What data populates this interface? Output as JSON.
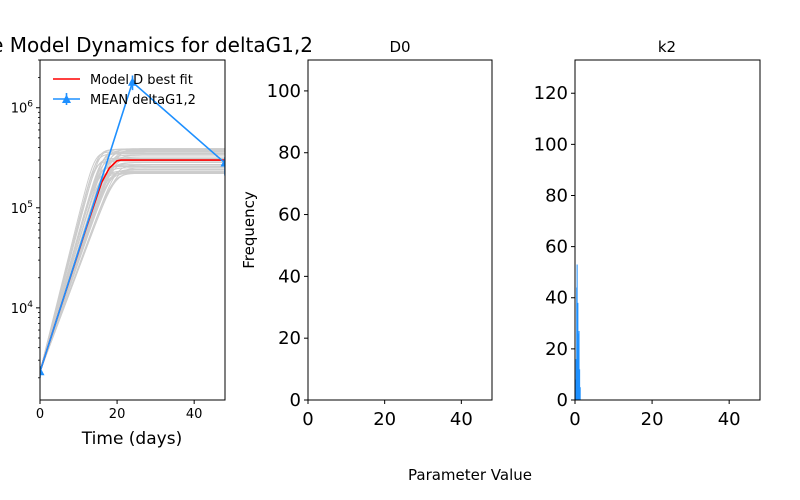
{
  "figure": {
    "xlabel_shared": "Parameter Value"
  },
  "chart_data": [
    {
      "type": "line",
      "title": "e Model Dynamics for deltaG1,2",
      "xlabel": "Time (days)",
      "ylabel": "",
      "xlim": [
        0,
        48
      ],
      "ylim": [
        1200,
        3000000
      ],
      "yscale": "log",
      "xticks": [
        0,
        20,
        40
      ],
      "yticks": [
        {
          "value": 10000,
          "base": "10",
          "exp": "4"
        },
        {
          "value": 100000,
          "base": "10",
          "exp": "5"
        },
        {
          "value": 1000000,
          "base": "10",
          "exp": "6"
        }
      ],
      "legend": {
        "placement": "top-left",
        "frame": false
      },
      "ensemble": {
        "color": "#cccccc",
        "count": 40,
        "y0": 2300,
        "plateau_min": 220000,
        "plateau_max": 390000,
        "saturation_day_min": 14,
        "saturation_day_max": 20
      },
      "series": [
        {
          "name": " Model D best fit",
          "color": "#ff0000",
          "style": "line",
          "x": [
            0,
            4,
            8,
            12,
            16,
            18,
            20,
            21,
            24,
            30,
            40,
            48
          ],
          "y": [
            2300,
            7000,
            21000,
            63000,
            180000,
            250000,
            295000,
            300000,
            300000,
            300000,
            300000,
            300000
          ]
        },
        {
          "name": "MEAN deltaG1,2",
          "color": "#1e90ff",
          "style": "errorbar",
          "marker": "triangle",
          "x": [
            0,
            24,
            48
          ],
          "y": [
            2300,
            1800000,
            280000
          ],
          "yerr_low": [
            300,
            300000,
            70000
          ],
          "yerr_high": [
            300,
            300000,
            40000
          ]
        }
      ]
    },
    {
      "type": "bar",
      "title": "D0",
      "ylabel": "Frequency",
      "xlim": [
        0,
        48
      ],
      "ylim": [
        0,
        110
      ],
      "xticks": [
        0,
        20,
        40
      ],
      "yticks": [
        0,
        20,
        40,
        60,
        80,
        100
      ],
      "bars": []
    },
    {
      "type": "bar",
      "title": "k2",
      "ylabel": "",
      "xlim": [
        0,
        48
      ],
      "ylim": [
        0,
        133
      ],
      "xticks": [
        0,
        20,
        40
      ],
      "yticks": [
        0,
        20,
        40,
        60,
        80,
        100,
        120
      ],
      "color": "#1e90ff",
      "bin_width": 0.1,
      "bars": [
        {
          "x": 0.15,
          "value": 8
        },
        {
          "x": 0.3,
          "value": 16
        },
        {
          "x": 0.45,
          "value": 44
        },
        {
          "x": 0.55,
          "value": 53
        },
        {
          "x": 0.65,
          "value": 30
        },
        {
          "x": 0.75,
          "value": 38
        },
        {
          "x": 0.85,
          "value": 26
        },
        {
          "x": 0.95,
          "value": 22
        },
        {
          "x": 1.05,
          "value": 27
        },
        {
          "x": 1.2,
          "value": 12
        },
        {
          "x": 1.35,
          "value": 5
        }
      ]
    }
  ]
}
